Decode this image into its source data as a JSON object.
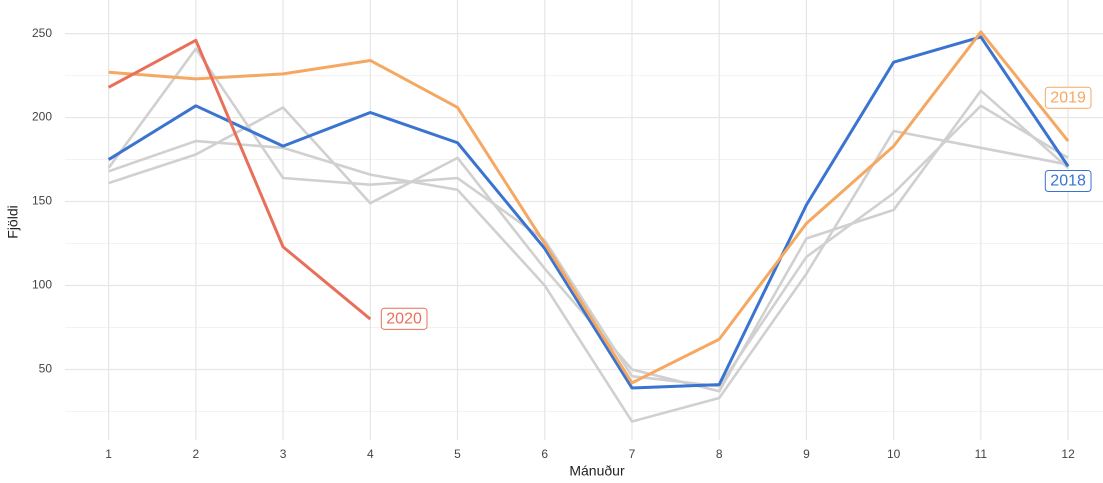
{
  "chart_data": {
    "type": "line",
    "x_label": "Mánuður",
    "y_label": "Fjöldi",
    "x": [
      1,
      2,
      3,
      4,
      5,
      6,
      7,
      8,
      9,
      10,
      11,
      12
    ],
    "xlim": [
      0.5,
      12.4
    ],
    "xticks": [
      1,
      2,
      3,
      4,
      5,
      6,
      7,
      8,
      9,
      10,
      11,
      12
    ],
    "ylim": [
      8,
      270
    ],
    "yticks": [
      50,
      100,
      150,
      200,
      250
    ],
    "grid": true,
    "series": [
      {
        "color": "#d0d0d0",
        "values": [
          161,
          178,
          206,
          149,
          176,
          110,
          50,
          37,
          128,
          145,
          216,
          170
        ]
      },
      {
        "color": "#d0d0d0",
        "values": [
          168,
          186,
          182,
          166,
          157,
          100,
          19,
          33,
          107,
          192,
          182,
          172
        ]
      },
      {
        "color": "#d0d0d0",
        "values": [
          170,
          241,
          164,
          160,
          164,
          127,
          46,
          40,
          117,
          155,
          207,
          176
        ]
      },
      {
        "name": "2018",
        "color": "#3a74d0",
        "values": [
          175,
          207,
          183,
          203,
          185,
          122,
          39,
          41,
          148,
          233,
          248,
          171
        ]
      },
      {
        "name": "2019",
        "color": "#f5a862",
        "values": [
          227,
          223,
          226,
          234,
          206,
          125,
          42,
          68,
          137,
          183,
          251,
          186
        ]
      },
      {
        "name": "2020",
        "color": "#e8705a",
        "values": [
          218,
          246,
          123,
          80,
          null,
          null,
          null,
          null,
          null,
          null,
          null,
          null
        ]
      }
    ]
  }
}
